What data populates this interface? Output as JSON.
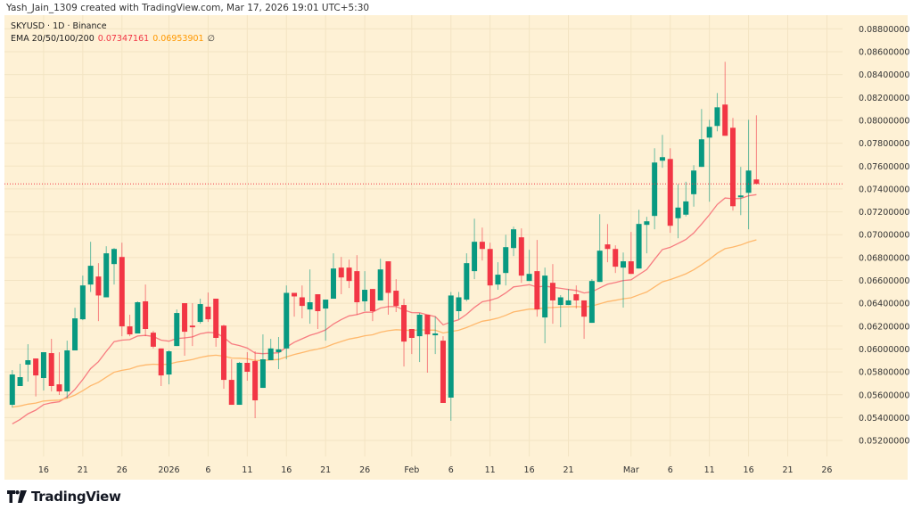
{
  "header": {
    "credit": "Yash_Jain_1309 created with TradingView.com, Mar 17, 2026 19:01 UTC+5:30"
  },
  "legend": {
    "symbol_line": "SKYUSD · 1D · Binance",
    "ema_label": "EMA 20/50/100/200",
    "ema20_value": "0.07347161",
    "ema50_value": "0.06953901",
    "ema_extra": "∅"
  },
  "logo": {
    "text": "TradingView",
    "icon": "tradingview-logo-icon"
  },
  "colors": {
    "up": "#089981",
    "down": "#f23645",
    "ema20": "#f77c80",
    "ema50": "#ffb86c",
    "background": "#fef1d5",
    "grid": "#f3e4c3",
    "last_price": "#f23645"
  },
  "chart_data": {
    "type": "candlestick",
    "symbol": "SKYUSD",
    "interval": "1D",
    "exchange": "Binance",
    "ylim": [
      0.0506,
      0.0892
    ],
    "xlim": [
      "2025-12-11",
      "2026-03-28"
    ],
    "grid": true,
    "y_ticks": [
      "0.08800000",
      "0.08600000",
      "0.08400000",
      "0.08200000",
      "0.08000000",
      "0.07800000",
      "0.07600000",
      "0.07400000",
      "0.07200000",
      "0.07000000",
      "0.06800000",
      "0.06600000",
      "0.06400000",
      "0.06200000",
      "0.06000000",
      "0.05800000",
      "0.05600000",
      "0.05400000",
      "0.05200000"
    ],
    "x_ticks": [
      {
        "label": "16",
        "date": "2025-12-16"
      },
      {
        "label": "21",
        "date": "2025-12-21"
      },
      {
        "label": "26",
        "date": "2025-12-26"
      },
      {
        "label": "2026",
        "date": "2026-01-01"
      },
      {
        "label": "6",
        "date": "2026-01-06"
      },
      {
        "label": "11",
        "date": "2026-01-11"
      },
      {
        "label": "16",
        "date": "2026-01-16"
      },
      {
        "label": "21",
        "date": "2026-01-21"
      },
      {
        "label": "26",
        "date": "2026-01-26"
      },
      {
        "label": "Feb",
        "date": "2026-02-01"
      },
      {
        "label": "6",
        "date": "2026-02-06"
      },
      {
        "label": "11",
        "date": "2026-02-11"
      },
      {
        "label": "16",
        "date": "2026-02-16"
      },
      {
        "label": "21",
        "date": "2026-02-21"
      },
      {
        "label": "Mar",
        "date": "2026-03-01"
      },
      {
        "label": "6",
        "date": "2026-03-06"
      },
      {
        "label": "11",
        "date": "2026-03-11"
      },
      {
        "label": "16",
        "date": "2026-03-16"
      },
      {
        "label": "21",
        "date": "2026-03-21"
      },
      {
        "label": "26",
        "date": "2026-03-26"
      }
    ],
    "last_price": 0.07444,
    "indicators": [
      {
        "name": "EMA 20",
        "period": 20,
        "last": 0.07347161
      },
      {
        "name": "EMA 50",
        "period": 50,
        "last": 0.06953901
      }
    ],
    "candles_columns": [
      "date",
      "open",
      "high",
      "low",
      "close"
    ],
    "candles": [
      [
        "2025-12-12",
        0.05512,
        0.05816,
        0.05488,
        0.05777
      ],
      [
        "2025-12-13",
        0.05676,
        0.05871,
        0.05676,
        0.05754
      ],
      [
        "2025-12-14",
        0.05863,
        0.06042,
        0.05715,
        0.05902
      ],
      [
        "2025-12-15",
        0.05917,
        0.05917,
        0.05585,
        0.05769
      ],
      [
        "2025-12-16",
        0.05746,
        0.05972,
        0.05637,
        0.05972
      ],
      [
        "2025-12-17",
        0.05964,
        0.06089,
        0.05629,
        0.05676
      ],
      [
        "2025-12-18",
        0.05691,
        0.05972,
        0.05598,
        0.05629
      ],
      [
        "2025-12-19",
        0.05629,
        0.06073,
        0.0557,
        0.05988
      ],
      [
        "2025-12-20",
        0.05988,
        0.06361,
        0.05988,
        0.06268
      ],
      [
        "2025-12-21",
        0.0626,
        0.06642,
        0.06252,
        0.06556
      ],
      [
        "2025-12-22",
        0.06564,
        0.06938,
        0.06499,
        0.06728
      ],
      [
        "2025-12-23",
        0.06634,
        0.06751,
        0.06244,
        0.06468
      ],
      [
        "2025-12-24",
        0.06452,
        0.06899,
        0.06452,
        0.06837
      ],
      [
        "2025-12-25",
        0.06743,
        0.06883,
        0.06564,
        0.06875
      ],
      [
        "2025-12-26",
        0.06805,
        0.0693,
        0.06112,
        0.06198
      ],
      [
        "2025-12-27",
        0.06198,
        0.063,
        0.06112,
        0.06128
      ],
      [
        "2025-12-28",
        0.06136,
        0.06417,
        0.06136,
        0.06409
      ],
      [
        "2025-12-29",
        0.06417,
        0.06564,
        0.06112,
        0.06175
      ],
      [
        "2025-12-30",
        0.06143,
        0.06159,
        0.06005,
        0.0602
      ],
      [
        "2025-12-31",
        0.06005,
        0.06005,
        0.05676,
        0.05769
      ],
      [
        "2026-01-01",
        0.05777,
        0.05988,
        0.05691,
        0.0598
      ],
      [
        "2026-01-02",
        0.06026,
        0.06346,
        0.06026,
        0.06315
      ],
      [
        "2026-01-03",
        0.06401,
        0.06401,
        0.05941,
        0.06151
      ],
      [
        "2026-01-04",
        0.06205,
        0.06401,
        0.06026,
        0.0619
      ],
      [
        "2026-01-05",
        0.06237,
        0.0644,
        0.06221,
        0.06393
      ],
      [
        "2026-01-06",
        0.0637,
        0.06494,
        0.06237,
        0.0626
      ],
      [
        "2026-01-07",
        0.0644,
        0.0644,
        0.0602,
        0.06097
      ],
      [
        "2026-01-08",
        0.06205,
        0.06213,
        0.05652,
        0.0573
      ],
      [
        "2026-01-09",
        0.0573,
        0.0591,
        0.05512,
        0.05512
      ],
      [
        "2026-01-10",
        0.05512,
        0.05887,
        0.05512,
        0.05879
      ],
      [
        "2026-01-11",
        0.05879,
        0.05972,
        0.05723,
        0.05801
      ],
      [
        "2026-01-12",
        0.05894,
        0.0598,
        0.05395,
        0.05551
      ],
      [
        "2026-01-13",
        0.0566,
        0.06128,
        0.0566,
        0.0591
      ],
      [
        "2026-01-14",
        0.05902,
        0.06089,
        0.05902,
        0.06005
      ],
      [
        "2026-01-15",
        0.05972,
        0.06105,
        0.05824,
        0.05997
      ],
      [
        "2026-01-16",
        0.06005,
        0.06556,
        0.0591,
        0.06491
      ],
      [
        "2026-01-17",
        0.06491,
        0.06491,
        0.06283,
        0.0646
      ],
      [
        "2026-01-18",
        0.06452,
        0.06556,
        0.06268,
        0.06377
      ],
      [
        "2026-01-19",
        0.06346,
        0.06696,
        0.06221,
        0.06409
      ],
      [
        "2026-01-20",
        0.06479,
        0.06479,
        0.06175,
        0.06331
      ],
      [
        "2026-01-21",
        0.06354,
        0.06432,
        0.06073,
        0.06432
      ],
      [
        "2026-01-22",
        0.0644,
        0.06837,
        0.0644,
        0.06704
      ],
      [
        "2026-01-23",
        0.06712,
        0.06805,
        0.06479,
        0.06626
      ],
      [
        "2026-01-24",
        0.06712,
        0.06782,
        0.06533,
        0.06595
      ],
      [
        "2026-01-25",
        0.06681,
        0.06821,
        0.063,
        0.06409
      ],
      [
        "2026-01-26",
        0.06417,
        0.06681,
        0.06331,
        0.06518
      ],
      [
        "2026-01-27",
        0.06525,
        0.06525,
        0.06244,
        0.06331
      ],
      [
        "2026-01-28",
        0.06425,
        0.0679,
        0.06425,
        0.06696
      ],
      [
        "2026-01-29",
        0.06767,
        0.06767,
        0.063,
        0.06491
      ],
      [
        "2026-01-30",
        0.0651,
        0.06611,
        0.06323,
        0.06377
      ],
      [
        "2026-01-31",
        0.06385,
        0.0644,
        0.05847,
        0.06065
      ],
      [
        "2026-02-01",
        0.06175,
        0.06175,
        0.05956,
        0.06097
      ],
      [
        "2026-02-02",
        0.06112,
        0.06315,
        0.05886,
        0.063
      ],
      [
        "2026-02-03",
        0.063,
        0.063,
        0.05793,
        0.06128
      ],
      [
        "2026-02-04",
        0.0612,
        0.06283,
        0.05956,
        0.06136
      ],
      [
        "2026-02-05",
        0.06073,
        0.06112,
        0.05528,
        0.05528
      ],
      [
        "2026-02-06",
        0.05575,
        0.06499,
        0.05372,
        0.06468
      ],
      [
        "2026-02-07",
        0.06331,
        0.06499,
        0.0626,
        0.06452
      ],
      [
        "2026-02-08",
        0.06432,
        0.06837,
        0.06417,
        0.06751
      ],
      [
        "2026-02-09",
        0.06681,
        0.0714,
        0.06611,
        0.06938
      ],
      [
        "2026-02-10",
        0.06938,
        0.07062,
        0.06774,
        0.06875
      ],
      [
        "2026-02-11",
        0.06875,
        0.0693,
        0.06331,
        0.06556
      ],
      [
        "2026-02-12",
        0.06564,
        0.06759,
        0.06518,
        0.0665
      ],
      [
        "2026-02-13",
        0.06665,
        0.06999,
        0.06556,
        0.06891
      ],
      [
        "2026-02-14",
        0.06883,
        0.0707,
        0.06813,
        0.07047
      ],
      [
        "2026-02-15",
        0.06977,
        0.07055,
        0.06579,
        0.06642
      ],
      [
        "2026-02-16",
        0.06595,
        0.06868,
        0.06595,
        0.06657
      ],
      [
        "2026-02-17",
        0.06681,
        0.06954,
        0.06283,
        0.06346
      ],
      [
        "2026-02-18",
        0.06276,
        0.06712,
        0.0605,
        0.06642
      ],
      [
        "2026-02-19",
        0.06579,
        0.06743,
        0.06221,
        0.06425
      ],
      [
        "2026-02-20",
        0.06385,
        0.06471,
        0.0619,
        0.06452
      ],
      [
        "2026-02-21",
        0.06385,
        0.06525,
        0.06385,
        0.06425
      ],
      [
        "2026-02-22",
        0.06479,
        0.06556,
        0.06354,
        0.06425
      ],
      [
        "2026-02-23",
        0.06425,
        0.06425,
        0.06089,
        0.06283
      ],
      [
        "2026-02-24",
        0.06229,
        0.06611,
        0.06229,
        0.06595
      ],
      [
        "2026-02-25",
        0.06587,
        0.07179,
        0.06587,
        0.0686
      ],
      [
        "2026-02-26",
        0.06915,
        0.07093,
        0.06759,
        0.06875
      ],
      [
        "2026-02-27",
        0.06875,
        0.06907,
        0.06665,
        0.0672
      ],
      [
        "2026-02-28",
        0.06712,
        0.06844,
        0.06362,
        0.06767
      ],
      [
        "2026-03-01",
        0.06767,
        0.07024,
        0.06657,
        0.06657
      ],
      [
        "2026-03-02",
        0.06704,
        0.07218,
        0.06704,
        0.07094
      ],
      [
        "2026-03-03",
        0.07086,
        0.07156,
        0.06837,
        0.07117
      ],
      [
        "2026-03-04",
        0.07164,
        0.07756,
        0.07047,
        0.07631
      ],
      [
        "2026-03-05",
        0.07647,
        0.07873,
        0.07585,
        0.07678
      ],
      [
        "2026-03-06",
        0.07662,
        0.07756,
        0.07016,
        0.07078
      ],
      [
        "2026-03-07",
        0.07144,
        0.0744,
        0.06969,
        0.07237
      ],
      [
        "2026-03-08",
        0.07175,
        0.07463,
        0.0716,
        0.07291
      ],
      [
        "2026-03-09",
        0.07354,
        0.07608,
        0.07245,
        0.07561
      ],
      [
        "2026-03-10",
        0.07593,
        0.08099,
        0.07593,
        0.07834
      ],
      [
        "2026-03-11",
        0.07849,
        0.08005,
        0.07288,
        0.07943
      ],
      [
        "2026-03-12",
        0.07951,
        0.08239,
        0.07904,
        0.08114
      ],
      [
        "2026-03-13",
        0.08138,
        0.08512,
        0.07865,
        0.07865
      ],
      [
        "2026-03-14",
        0.07935,
        0.08021,
        0.0721,
        0.07249
      ],
      [
        "2026-03-15",
        0.07327,
        0.07593,
        0.07171,
        0.07343
      ],
      [
        "2026-03-16",
        0.07366,
        0.08005,
        0.07047,
        0.07561
      ],
      [
        "2026-03-17",
        0.07483,
        0.08044,
        0.07444,
        0.07444
      ]
    ]
  }
}
